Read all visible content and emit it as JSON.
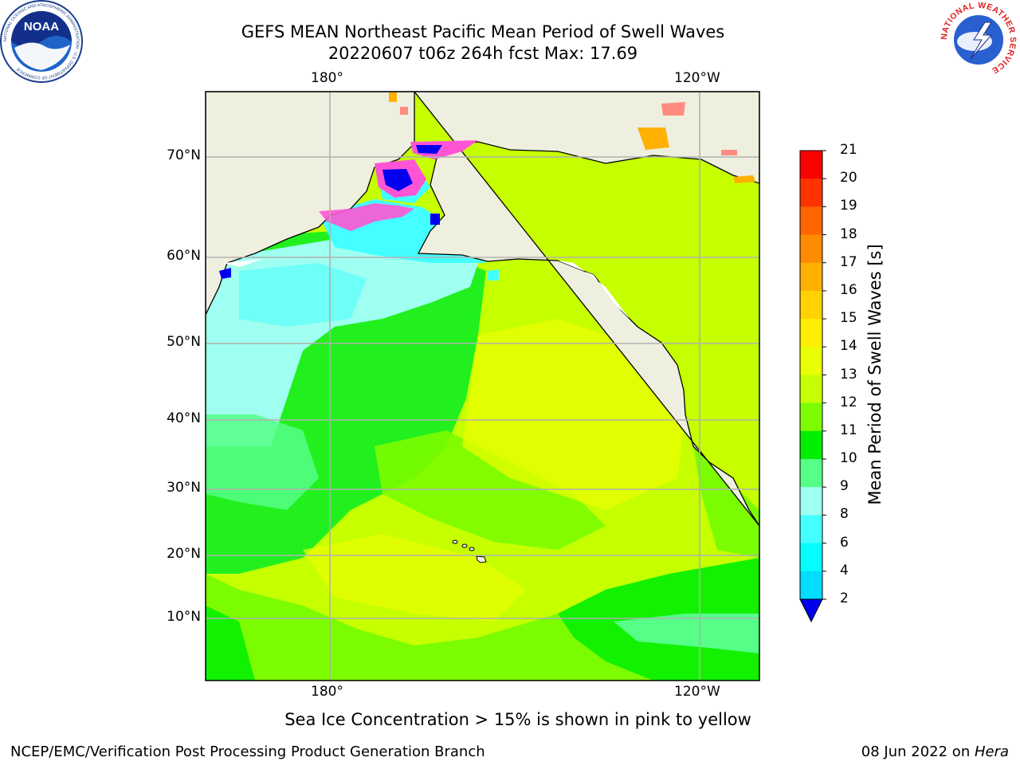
{
  "title": {
    "line1": "GEFS MEAN Northeast Pacific Mean Period of Swell Waves",
    "line2": "20220607 t06z 264h fcst   Max: 17.69"
  },
  "map": {
    "lon_labels": [
      "180°",
      "120°W"
    ],
    "lat_labels": [
      "70°N",
      "60°N",
      "50°N",
      "40°N",
      "30°N",
      "20°N",
      "10°N"
    ],
    "colors": {
      "land": "#efefdf",
      "coast": "#000000",
      "grid": "#b0b0b0"
    },
    "regions": [
      {
        "label": "ice",
        "color": "#ff55d5"
      },
      {
        "label": "deep-swell",
        "color": "#0000f0"
      }
    ]
  },
  "colorbar": {
    "title": "Mean Period of Swell Waves [s]",
    "tick_labels": [
      "21",
      "20",
      "19",
      "18",
      "17",
      "16",
      "15",
      "14",
      "13",
      "12",
      "11",
      "10",
      "9",
      "8",
      "6",
      "4",
      "2"
    ],
    "colors": [
      "#ff0000",
      "#ff3300",
      "#ff6600",
      "#ff8c00",
      "#ffb000",
      "#ffd200",
      "#ffee00",
      "#eaff00",
      "#c5ff00",
      "#7cfc00",
      "#00ee00",
      "#55ff88",
      "#9ffff0",
      "#44ffff",
      "#00ffff",
      "#00ddff",
      "#0077ff"
    ],
    "under_color": "#0000ee"
  },
  "footnote": "Sea Ice Concentration > 15% is shown in pink to yellow",
  "credit_left": "NCEP/EMC/Verification Post Processing Product Generation Branch",
  "credit_right_date": "08 Jun 2022 on ",
  "credit_right_host": "Hera",
  "logos": {
    "noaa": {
      "text": "NOAA",
      "ring_text": "NATIONAL OCEANIC AND ATMOSPHERIC ADMINISTRATION · U.S. DEPARTMENT OF COMMERCE"
    },
    "nws": {
      "ring_text": "NATIONAL WEATHER SERVICE"
    }
  }
}
